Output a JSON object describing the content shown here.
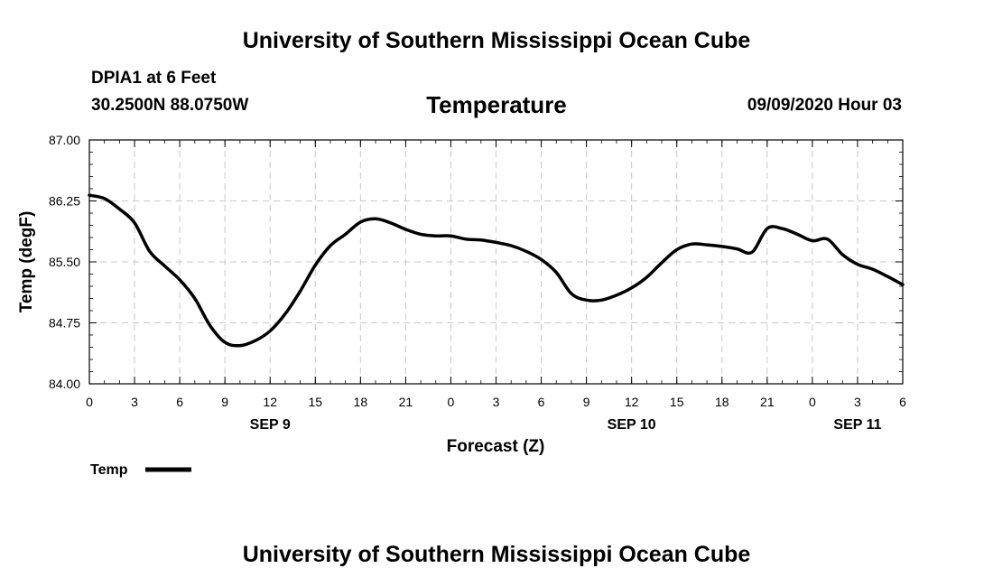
{
  "header": {
    "title": "University of Southern Mississippi Ocean Cube",
    "station": "DPIA1 at 6 Feet",
    "coords": "30.2500N 88.0750W",
    "datetime": "09/09/2020 Hour 03",
    "footer_title": "University of Southern Mississippi Ocean Cube"
  },
  "chart_data": {
    "type": "line",
    "title": "Temperature",
    "xlabel": "Forecast (Z)",
    "ylabel": "Temp (degF)",
    "ylim": [
      84.0,
      87.0
    ],
    "yticks": [
      "84.00",
      "84.75",
      "85.50",
      "86.25",
      "87.00"
    ],
    "xlim": [
      0,
      54
    ],
    "x_ticks": [
      "0",
      "3",
      "6",
      "9",
      "12",
      "15",
      "18",
      "21",
      "0",
      "3",
      "6",
      "9",
      "12",
      "15",
      "18",
      "21",
      "0",
      "3",
      "6"
    ],
    "day_labels": [
      {
        "label": "SEP 9",
        "hour": 12
      },
      {
        "label": "SEP 10",
        "hour": 36
      },
      {
        "label": "SEP 11",
        "hour": 51
      }
    ],
    "grid": true,
    "legend": "bottom-left",
    "series": [
      {
        "name": "Temp",
        "color": "#000000",
        "x": [
          0,
          1,
          2,
          3,
          4,
          5,
          6,
          7,
          8,
          9,
          10,
          11,
          12,
          13,
          14,
          15,
          16,
          17,
          18,
          19,
          20,
          21,
          22,
          23,
          24,
          25,
          26,
          27,
          28,
          29,
          30,
          31,
          32,
          33,
          34,
          35,
          36,
          37,
          38,
          39,
          40,
          41,
          42,
          43,
          44,
          45,
          46,
          47,
          48,
          49,
          50,
          51,
          52,
          53,
          54
        ],
        "values": [
          86.32,
          86.28,
          86.15,
          85.98,
          85.63,
          85.45,
          85.28,
          85.05,
          84.72,
          84.51,
          84.47,
          84.53,
          84.65,
          84.86,
          85.14,
          85.46,
          85.7,
          85.84,
          85.99,
          86.03,
          85.98,
          85.9,
          85.84,
          85.82,
          85.82,
          85.78,
          85.77,
          85.74,
          85.7,
          85.63,
          85.53,
          85.37,
          85.11,
          85.03,
          85.03,
          85.09,
          85.18,
          85.31,
          85.49,
          85.65,
          85.72,
          85.71,
          85.69,
          85.66,
          85.62,
          85.91,
          85.91,
          85.84,
          85.76,
          85.78,
          85.59,
          85.47,
          85.41,
          85.32,
          85.22
        ]
      }
    ]
  }
}
